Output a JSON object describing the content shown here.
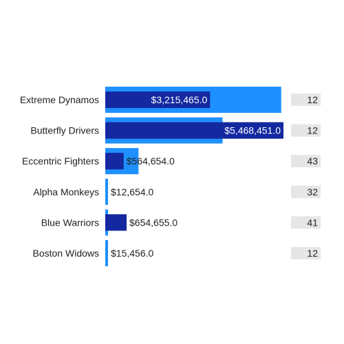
{
  "chart_data": {
    "type": "bar",
    "orientation": "horizontal",
    "categories": [
      "Extreme Dynamos",
      "Butterfly Drivers",
      "Eccentric Fighters",
      "Alpha Monkeys",
      "Blue Warriors",
      "Boston Widows"
    ],
    "series": [
      {
        "values": [
          3215465.0,
          5468451.0,
          564654.0,
          12654.0,
          654655.0,
          15456.0
        ],
        "labels": [
          "$3,215,465.0",
          "$5,468,451.0",
          "$564,654.0",
          "$12,654.0",
          "$654,655.0",
          "$15,456.0"
        ],
        "color": "#1428a0"
      },
      {
        "values": [
          5400000,
          3600000,
          1020000,
          0,
          0,
          0
        ],
        "color": "#1e90ff"
      }
    ],
    "counts": [
      "12",
      "12",
      "43",
      "32",
      "41",
      "12"
    ],
    "xlim": [
      0,
      5468451.0
    ],
    "title": "",
    "xlabel": "",
    "ylabel": "",
    "grid": false,
    "colors": {
      "primary_bar": "#1428a0",
      "secondary_bar": "#1e90ff",
      "count_box": "#e6e6e6",
      "inner_label_text": "#ffffff",
      "outer_label_text": "#222222"
    }
  }
}
